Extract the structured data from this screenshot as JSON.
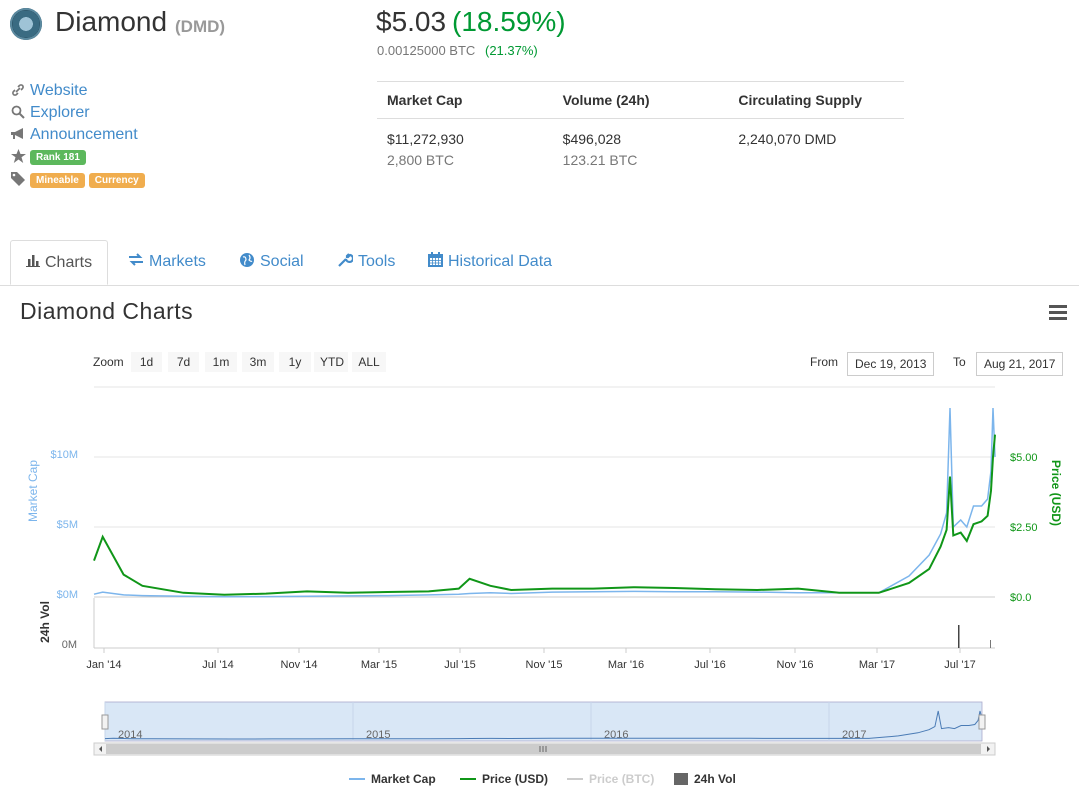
{
  "header": {
    "name": "Diamond",
    "symbol": "(DMD)",
    "price_usd": "$5.03",
    "price_change": "(18.59%)",
    "price_btc": "0.00125000 BTC",
    "price_btc_change": "(21.37%)"
  },
  "sidebar": {
    "links": [
      {
        "label": "Website",
        "icon": "link-icon"
      },
      {
        "label": "Explorer",
        "icon": "search-icon"
      },
      {
        "label": "Announcement",
        "icon": "bullhorn-icon"
      }
    ],
    "rank": "Rank 181",
    "tags": [
      "Mineable",
      "Currency"
    ]
  },
  "stats": {
    "headers": [
      "Market Cap",
      "Volume (24h)",
      "Circulating Supply"
    ],
    "market_cap_usd": "$11,272,930",
    "market_cap_btc": "2,800 BTC",
    "volume_usd": "$496,028",
    "volume_btc": "123.21 BTC",
    "supply": "2,240,070 DMD"
  },
  "tabs": [
    {
      "label": "Charts",
      "icon": "bar-chart-icon",
      "active": true
    },
    {
      "label": "Markets",
      "icon": "exchange-icon"
    },
    {
      "label": "Social",
      "icon": "globe-icon"
    },
    {
      "label": "Tools",
      "icon": "wrench-icon"
    },
    {
      "label": "Historical Data",
      "icon": "calendar-icon"
    }
  ],
  "charts": {
    "title": "Diamond Charts",
    "zoom_label": "Zoom",
    "zoom_buttons": [
      "1d",
      "7d",
      "1m",
      "3m",
      "1y",
      "YTD",
      "ALL"
    ],
    "from_label": "From",
    "from_date": "Dec 19, 2013",
    "to_label": "To",
    "to_date": "Aug 21, 2017"
  },
  "chart_data": {
    "type": "line",
    "x_labels": [
      "Jan '14",
      "Jul '14",
      "Nov '14",
      "Mar '15",
      "Jul '15",
      "Nov '15",
      "Mar '16",
      "Jul '16",
      "Nov '16",
      "Mar '17",
      "Jul '17"
    ],
    "left_axis": {
      "label": "Market Cap",
      "ticks": [
        "$10M",
        "$5M",
        "$0M"
      ]
    },
    "right_axis": {
      "label": "Price (USD)",
      "ticks": [
        "$5.00",
        "$2.50",
        "$0.0"
      ]
    },
    "volume_axis": {
      "label": "24h Vol",
      "ticks": [
        "0M"
      ]
    },
    "navigator_years": [
      "2014",
      "2015",
      "2016",
      "2017"
    ],
    "x_dates": [
      "2013-12-19",
      "2014-01-01",
      "2014-02-01",
      "2014-03-01",
      "2014-05-01",
      "2014-07-01",
      "2014-09-01",
      "2014-11-01",
      "2015-01-01",
      "2015-03-01",
      "2015-05-01",
      "2015-06-15",
      "2015-07-01",
      "2015-08-01",
      "2015-09-01",
      "2015-11-01",
      "2016-01-01",
      "2016-03-01",
      "2016-05-01",
      "2016-07-01",
      "2016-09-01",
      "2016-11-01",
      "2017-01-01",
      "2017-03-01",
      "2017-04-15",
      "2017-05-15",
      "2017-06-01",
      "2017-06-10",
      "2017-06-15",
      "2017-06-20",
      "2017-07-01",
      "2017-07-10",
      "2017-07-20",
      "2017-08-01",
      "2017-08-10",
      "2017-08-15",
      "2017-08-18",
      "2017-08-21"
    ],
    "series": [
      {
        "name": "Market Cap",
        "color": "#7cb5ec",
        "values": [
          0.2,
          0.35,
          0.15,
          0.1,
          0.05,
          0.02,
          0.03,
          0.05,
          0.08,
          0.1,
          0.15,
          0.2,
          0.25,
          0.3,
          0.25,
          0.35,
          0.38,
          0.4,
          0.38,
          0.37,
          0.35,
          0.3,
          0.3,
          0.3,
          1.5,
          3.0,
          4.5,
          6.0,
          13.5,
          5.0,
          5.5,
          5.0,
          6.5,
          6.5,
          7.0,
          9.0,
          13.5,
          10.0
        ]
      },
      {
        "name": "Price (USD)",
        "color": "#109618",
        "values": [
          1.3,
          2.15,
          0.8,
          0.4,
          0.15,
          0.08,
          0.12,
          0.2,
          0.15,
          0.18,
          0.2,
          0.3,
          0.65,
          0.4,
          0.25,
          0.3,
          0.3,
          0.35,
          0.32,
          0.28,
          0.25,
          0.3,
          0.15,
          0.15,
          0.5,
          1.0,
          1.8,
          2.4,
          4.3,
          2.2,
          2.3,
          2.0,
          2.6,
          2.7,
          2.9,
          3.8,
          5.0,
          5.8
        ]
      },
      {
        "name": "Price (BTC)",
        "color": "#cccccc",
        "values": []
      },
      {
        "name": "24h Vol",
        "color": "#666666",
        "values": []
      }
    ],
    "left_ylim": [
      0,
      12
    ],
    "right_ylim": [
      0,
      6
    ],
    "legend_placement": "bottom-center"
  }
}
